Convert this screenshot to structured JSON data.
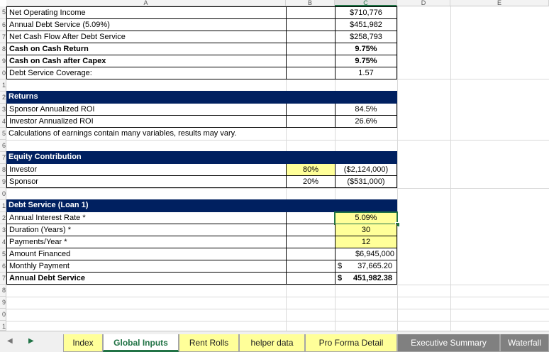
{
  "columns": [
    "A",
    "B",
    "C",
    "D",
    "E"
  ],
  "rows": {
    "net_operating_income": {
      "label": "Net Operating Income",
      "value": "$710,776"
    },
    "annual_debt_service_pct": {
      "label": "Annual Debt Service (5.09%)",
      "value": "$451,982"
    },
    "net_cash_flow": {
      "label": "Net Cash Flow After Debt Service",
      "value": "$258,793"
    },
    "cash_on_cash": {
      "label": "Cash on Cash Return",
      "value": "9.75%"
    },
    "cash_on_cash_capex": {
      "label": "Cash on Cash after Capex",
      "value": "9.75%"
    },
    "debt_service_coverage": {
      "label": "Debt Service Coverage:",
      "value": "1.57"
    }
  },
  "returns": {
    "header": "Returns",
    "sponsor": {
      "label": "Sponsor Annualized ROI",
      "value": "84.5%"
    },
    "investor": {
      "label": "Investor Annualized ROI",
      "value": "26.6%"
    },
    "note": "Calculations of earnings contain many variables, results may vary."
  },
  "equity": {
    "header": "Equity Contribution",
    "investor": {
      "label": "Investor",
      "pct": "80%",
      "value": "($2,124,000)"
    },
    "sponsor": {
      "label": "Sponsor",
      "pct": "20%",
      "value": "($531,000)"
    }
  },
  "debt": {
    "header": "Debt Service (Loan 1)",
    "rate": {
      "label": "Annual Interest Rate *",
      "value": "5.09%"
    },
    "duration": {
      "label": "Duration (Years) *",
      "value": "30"
    },
    "payments": {
      "label": "Payments/Year *",
      "value": "12"
    },
    "amount": {
      "label": "Amount Financed",
      "value": "$6,945,000"
    },
    "monthly": {
      "label": "Monthly Payment",
      "currency": "$",
      "value": "37,665.20"
    },
    "annual": {
      "label": "Annual Debt Service",
      "currency": "$",
      "value": "451,982.38"
    }
  },
  "tabs": [
    "Index",
    "Global Inputs",
    "Rent Rolls",
    "helper data",
    "Pro Forma Detail",
    "Executive Summary",
    "Waterfall"
  ],
  "active_tab": "Global Inputs",
  "colors": {
    "header_navy": "#002060",
    "input_yellow": "#ffff99",
    "excel_green": "#217346"
  }
}
